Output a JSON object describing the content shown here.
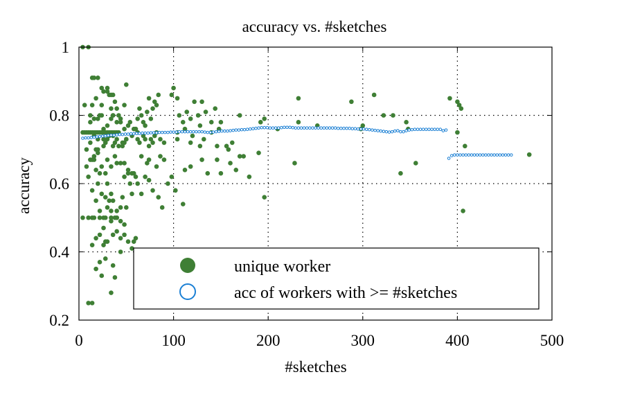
{
  "chart_data": {
    "type": "scatter",
    "title": "accuracy vs. #sketches",
    "xlabel": "#sketches",
    "ylabel": "accuracy",
    "xlim": [
      0,
      500
    ],
    "ylim": [
      0.2,
      1
    ],
    "xticks": [
      0,
      100,
      200,
      300,
      400,
      500
    ],
    "yticks": [
      0.2,
      0.4,
      0.6,
      0.8,
      1
    ],
    "xtick_labels": [
      "0",
      "100",
      "200",
      "300",
      "400",
      "500"
    ],
    "ytick_labels": [
      "0.2",
      "0.4",
      "0.6",
      "0.8",
      "1"
    ],
    "grid": true,
    "legend_position": "bottom-center",
    "series": [
      {
        "name": "unique worker",
        "marker": "filled-circle",
        "color": "#3f7f35",
        "x": [
          4,
          6,
          8,
          10,
          12,
          14,
          16,
          18,
          20,
          22,
          24,
          26,
          28,
          30,
          32,
          34,
          36,
          38,
          40,
          42,
          4,
          10,
          14,
          16,
          22,
          26,
          28,
          34,
          38,
          40,
          4,
          10,
          14,
          16,
          20,
          24,
          30,
          32,
          34,
          36,
          38,
          10,
          14,
          18,
          24,
          34,
          38,
          26,
          44,
          6,
          12,
          14,
          18,
          22,
          24,
          26,
          30,
          34,
          36,
          40,
          42,
          44,
          48,
          50,
          8,
          12,
          14,
          16,
          18,
          20,
          26,
          28,
          30,
          36,
          38,
          42,
          46,
          48,
          50,
          10,
          14,
          18,
          20,
          22,
          24,
          28,
          30,
          32,
          34,
          36,
          40,
          44,
          46,
          48,
          52,
          54,
          56,
          58,
          8,
          12,
          16,
          20,
          24,
          28,
          30,
          34,
          38,
          40,
          44,
          48,
          52,
          56,
          60,
          14,
          18,
          22,
          26,
          28,
          30,
          34,
          36,
          40,
          44,
          48,
          52,
          56,
          58,
          60,
          12,
          16,
          20,
          24,
          26,
          30,
          34,
          36,
          40,
          44,
          48,
          52,
          54,
          58,
          60,
          62,
          16,
          20,
          26,
          28,
          32,
          36,
          40,
          46,
          50,
          56,
          62,
          18,
          22,
          30,
          34,
          40,
          44,
          50,
          22,
          28,
          36,
          48,
          60,
          62,
          64,
          66,
          68,
          70,
          72,
          74,
          76,
          78,
          80,
          82,
          84,
          64,
          68,
          70,
          74,
          76,
          78,
          80,
          82,
          86,
          90,
          62,
          66,
          70,
          74,
          78,
          84,
          88,
          94,
          98,
          102,
          66,
          72,
          74,
          82,
          86,
          90,
          100,
          104,
          106,
          110,
          114,
          118,
          122,
          126,
          130,
          134,
          140,
          144,
          148,
          104,
          112,
          120,
          128,
          140,
          150,
          104,
          118,
          132,
          146,
          156,
          162,
          112,
          130,
          150,
          160,
          170,
          98,
          128,
          146,
          158,
          166,
          170,
          174,
          110,
          118,
          136,
          180,
          190,
          196,
          192,
          232,
          288,
          312,
          322,
          332,
          346,
          348,
          356,
          392,
          400,
          402,
          404,
          400,
          406,
          210,
          228,
          252,
          298,
          232,
          340,
          408,
          476,
          300,
          196
        ],
        "y": [
          0.75,
          0.75,
          0.75,
          0.75,
          0.75,
          0.75,
          0.75,
          0.75,
          0.75,
          0.75,
          0.75,
          0.75,
          0.75,
          0.75,
          0.75,
          0.75,
          0.75,
          0.75,
          0.75,
          0.75,
          0.5,
          0.5,
          0.5,
          0.5,
          0.5,
          0.5,
          0.5,
          0.5,
          0.5,
          0.5,
          1.0,
          1.0,
          0.91,
          0.91,
          0.91,
          0.88,
          0.88,
          0.86,
          0.86,
          0.86,
          0.84,
          0.25,
          0.25,
          0.35,
          0.33,
          0.28,
          0.325,
          0.42,
          0.4,
          0.83,
          0.8,
          0.83,
          0.85,
          0.8,
          0.83,
          0.87,
          0.87,
          0.82,
          0.8,
          0.82,
          0.8,
          0.78,
          0.83,
          0.89,
          0.7,
          0.72,
          0.67,
          0.67,
          0.7,
          0.7,
          0.71,
          0.72,
          0.73,
          0.71,
          0.72,
          0.71,
          0.71,
          0.72,
          0.73,
          0.62,
          0.58,
          0.64,
          0.6,
          0.63,
          0.57,
          0.56,
          0.6,
          0.55,
          0.57,
          0.55,
          0.52,
          0.53,
          0.56,
          0.62,
          0.63,
          0.6,
          0.57,
          0.63,
          0.65,
          0.67,
          0.68,
          0.69,
          0.65,
          0.63,
          0.67,
          0.65,
          0.68,
          0.66,
          0.66,
          0.66,
          0.64,
          0.63,
          0.62,
          0.42,
          0.44,
          0.45,
          0.47,
          0.43,
          0.43,
          0.49,
          0.45,
          0.46,
          0.44,
          0.45,
          0.43,
          0.41,
          0.43,
          0.44,
          0.78,
          0.79,
          0.79,
          0.8,
          0.76,
          0.77,
          0.79,
          0.8,
          0.78,
          0.79,
          0.76,
          0.77,
          0.78,
          0.76,
          0.76,
          0.75,
          0.74,
          0.73,
          0.73,
          0.72,
          0.74,
          0.74,
          0.73,
          0.72,
          0.73,
          0.74,
          0.73,
          0.55,
          0.52,
          0.53,
          0.52,
          0.5,
          0.49,
          0.53,
          0.37,
          0.38,
          0.36,
          0.48,
          0.76,
          0.79,
          0.82,
          0.8,
          0.78,
          0.77,
          0.81,
          0.85,
          0.79,
          0.82,
          0.84,
          0.83,
          0.86,
          0.72,
          0.74,
          0.73,
          0.71,
          0.73,
          0.72,
          0.74,
          0.75,
          0.73,
          0.72,
          0.6,
          0.57,
          0.62,
          0.61,
          0.58,
          0.56,
          0.53,
          0.6,
          0.62,
          0.58,
          0.68,
          0.66,
          0.67,
          0.65,
          0.68,
          0.67,
          0.88,
          0.85,
          0.8,
          0.78,
          0.81,
          0.79,
          0.84,
          0.8,
          0.84,
          0.81,
          0.78,
          0.82,
          0.76,
          0.75,
          0.76,
          0.74,
          0.77,
          0.75,
          0.78,
          0.73,
          0.72,
          0.73,
          0.71,
          0.71,
          0.72,
          0.64,
          0.67,
          0.63,
          0.66,
          0.68,
          0.86,
          0.71,
          0.67,
          0.7,
          0.64,
          0.8,
          0.68,
          0.54,
          0.65,
          0.63,
          0.62,
          0.69,
          0.56,
          0.78,
          0.85,
          0.84,
          0.86,
          0.8,
          0.8,
          0.78,
          0.76,
          0.66,
          0.85,
          0.84,
          0.83,
          0.82,
          0.75,
          0.52,
          0.76,
          0.66,
          0.77,
          0.76,
          0.78,
          0.63,
          0.71,
          0.685,
          0.77,
          0.79
        ]
      },
      {
        "name": "acc of workers with >= #sketches",
        "marker": "open-circle",
        "color": "#1a7fd4",
        "x_start": 4,
        "x_step": 3,
        "y": [
          0.733,
          0.734,
          0.734,
          0.735,
          0.736,
          0.737,
          0.738,
          0.739,
          0.74,
          0.741,
          0.742,
          0.742,
          0.743,
          0.744,
          0.744,
          0.745,
          0.745,
          0.746,
          0.746,
          0.747,
          0.747,
          0.748,
          0.748,
          0.748,
          0.749,
          0.749,
          0.749,
          0.75,
          0.75,
          0.75,
          0.75,
          0.751,
          0.751,
          0.751,
          0.752,
          0.752,
          0.752,
          0.752,
          0.752,
          0.752,
          0.752,
          0.752,
          0.752,
          0.751,
          0.75,
          0.75,
          0.751,
          0.752,
          0.753,
          0.754,
          0.754,
          0.754,
          0.755,
          0.756,
          0.757,
          0.757,
          0.758,
          0.758,
          0.759,
          0.76,
          0.761,
          0.762,
          0.763,
          0.764,
          0.764,
          0.764,
          0.763,
          0.763,
          0.763,
          0.763,
          0.764,
          0.765,
          0.765,
          0.765,
          0.764,
          0.763,
          0.763,
          0.763,
          0.763,
          0.763,
          0.763,
          0.763,
          0.763,
          0.763,
          0.763,
          0.763,
          0.763,
          0.763,
          0.763,
          0.763,
          0.762,
          0.762,
          0.762,
          0.762,
          0.762,
          0.761,
          0.761,
          0.76,
          0.76,
          0.76,
          0.759,
          0.758,
          0.757,
          0.756,
          0.755,
          0.754,
          0.753,
          0.752,
          0.751,
          0.752,
          0.754,
          0.755,
          0.752,
          0.752,
          0.755,
          0.757,
          0.758,
          0.759,
          0.759,
          0.759,
          0.759,
          0.759,
          0.759,
          0.759,
          0.759,
          0.759,
          0.759,
          0.755,
          0.757,
          0.674,
          0.682,
          0.684,
          0.684,
          0.684,
          0.684,
          0.684,
          0.684,
          0.684,
          0.684,
          0.684,
          0.684,
          0.684,
          0.684,
          0.684,
          0.684,
          0.684,
          0.684,
          0.684,
          0.684,
          0.684,
          0.684,
          0.684
        ]
      }
    ]
  }
}
